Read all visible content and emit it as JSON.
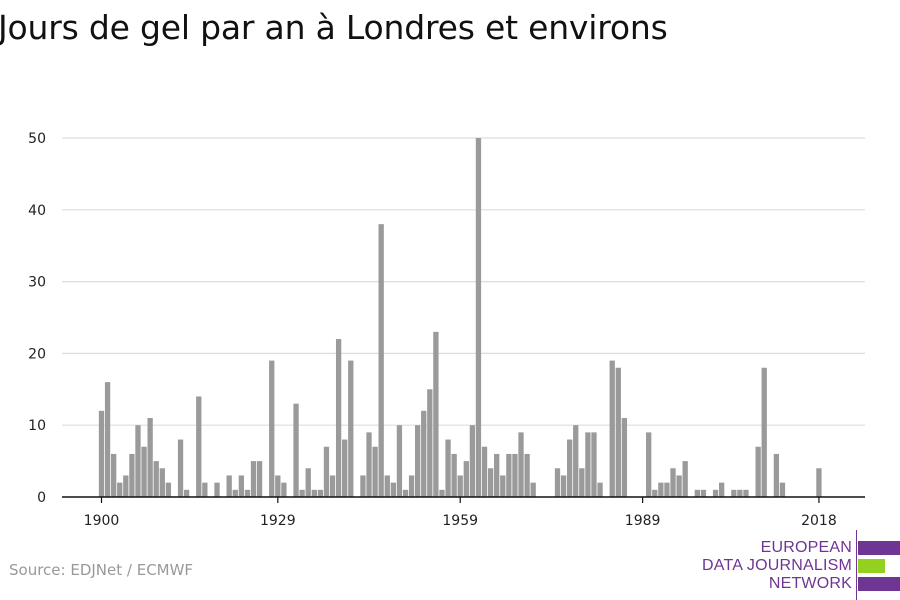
{
  "title": "Jours de gel par an à Londres et environs",
  "source": "Source: EDJNet / ECMWF",
  "logo": {
    "line1": "EUROPEAN",
    "line2": "DATA JOURNALISM",
    "line3": "NETWORK",
    "colors": {
      "purple": "#6f3593",
      "green": "#93d01f"
    }
  },
  "chart_data": {
    "type": "bar",
    "title": "Jours de gel par an à Londres et environs",
    "xlabel": "",
    "ylabel": "",
    "ylim": [
      0,
      50
    ],
    "yticks": [
      0,
      10,
      20,
      30,
      40,
      50
    ],
    "xticks": [
      "1900",
      "1929",
      "1959",
      "1989",
      "2018"
    ],
    "grid": true,
    "bar_color": "#9a9a9a",
    "categories": [
      1900,
      1901,
      1902,
      1903,
      1904,
      1905,
      1906,
      1907,
      1908,
      1909,
      1910,
      1911,
      1912,
      1913,
      1914,
      1915,
      1916,
      1917,
      1918,
      1919,
      1920,
      1921,
      1922,
      1923,
      1924,
      1925,
      1926,
      1927,
      1928,
      1929,
      1930,
      1931,
      1932,
      1933,
      1934,
      1935,
      1936,
      1937,
      1938,
      1939,
      1940,
      1941,
      1942,
      1943,
      1944,
      1945,
      1946,
      1947,
      1948,
      1949,
      1950,
      1951,
      1952,
      1953,
      1954,
      1955,
      1956,
      1957,
      1958,
      1959,
      1960,
      1961,
      1962,
      1963,
      1964,
      1965,
      1966,
      1967,
      1968,
      1969,
      1970,
      1971,
      1972,
      1973,
      1974,
      1975,
      1976,
      1977,
      1978,
      1979,
      1980,
      1981,
      1982,
      1983,
      1984,
      1985,
      1986,
      1987,
      1988,
      1989,
      1990,
      1991,
      1992,
      1993,
      1994,
      1995,
      1996,
      1997,
      1998,
      1999,
      2000,
      2001,
      2002,
      2003,
      2004,
      2005,
      2006,
      2007,
      2008,
      2009,
      2010,
      2011,
      2012,
      2013,
      2014,
      2015,
      2016,
      2017,
      2018,
      2019,
      2020
    ],
    "values": [
      12,
      16,
      6,
      2,
      3,
      6,
      10,
      7,
      11,
      5,
      4,
      2,
      0,
      8,
      1,
      0,
      14,
      2,
      0,
      2,
      0,
      3,
      1,
      3,
      1,
      5,
      5,
      0,
      19,
      3,
      2,
      0,
      13,
      1,
      4,
      1,
      1,
      7,
      3,
      22,
      8,
      19,
      0,
      3,
      9,
      7,
      38,
      3,
      2,
      10,
      1,
      3,
      10,
      12,
      15,
      23,
      1,
      8,
      6,
      3,
      5,
      10,
      50,
      7,
      4,
      6,
      3,
      6,
      6,
      9,
      6,
      2,
      0,
      0,
      0,
      4,
      3,
      8,
      10,
      4,
      9,
      9,
      2,
      0,
      19,
      18,
      11,
      0,
      0,
      0,
      9,
      1,
      2,
      2,
      4,
      3,
      5,
      0,
      1,
      1,
      0,
      1,
      2,
      0,
      1,
      1,
      1,
      0,
      7,
      18,
      0,
      6,
      2,
      0,
      0,
      0,
      0,
      0,
      4,
      0,
      0
    ]
  }
}
